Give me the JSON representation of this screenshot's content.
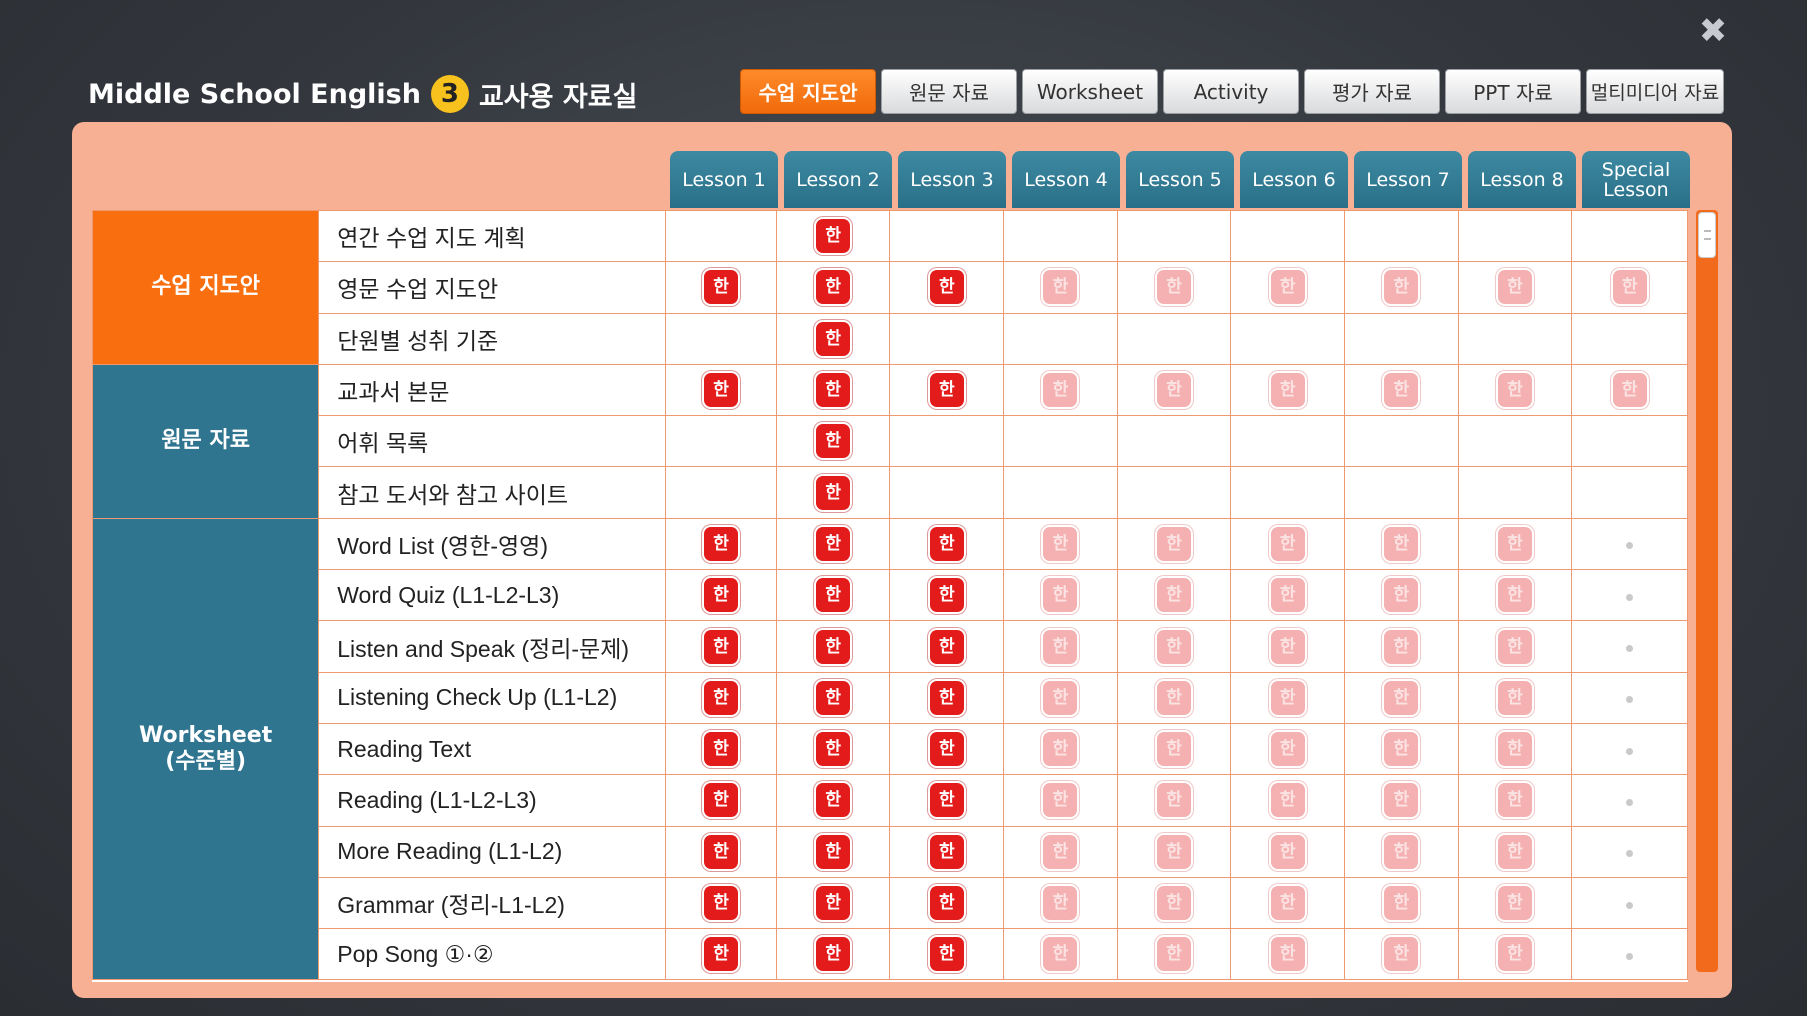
{
  "header": {
    "title": "Middle School English",
    "badge": "3",
    "subtitle": "교사용 자료실",
    "close_symbol": "✖"
  },
  "top_tabs": [
    {
      "label": "수업 지도안",
      "active": true
    },
    {
      "label": "원문 자료",
      "active": false
    },
    {
      "label": "Worksheet",
      "active": false
    },
    {
      "label": "Activity",
      "active": false
    },
    {
      "label": "평가 자료",
      "active": false
    },
    {
      "label": "PPT 자료",
      "active": false
    },
    {
      "label": "멀티미디어 자료",
      "active": false
    }
  ],
  "lesson_tabs": [
    "Lesson 1",
    "Lesson 2",
    "Lesson 3",
    "Lesson 4",
    "Lesson 5",
    "Lesson 6",
    "Lesson 7",
    "Lesson 8",
    "Special\nLesson"
  ],
  "icon_glyph": "한",
  "categories": [
    {
      "label": "수업 지도안",
      "color": "#f96f0f",
      "rows": 3
    },
    {
      "label": "원문 자료",
      "color": "#2f7590",
      "rows": 3
    },
    {
      "label": "Worksheet\n(수준별)",
      "color": "#2f7590",
      "rows": 9
    }
  ],
  "rows": [
    {
      "label": "연간 수업 지도 계획",
      "cells": [
        "none",
        "active",
        "none",
        "none",
        "none",
        "none",
        "none",
        "none",
        "none"
      ]
    },
    {
      "label": "영문 수업 지도안",
      "cells": [
        "active",
        "active",
        "active",
        "faded",
        "faded",
        "faded",
        "faded",
        "faded",
        "faded"
      ]
    },
    {
      "label": "단원별 성취 기준",
      "cells": [
        "none",
        "active",
        "none",
        "none",
        "none",
        "none",
        "none",
        "none",
        "none"
      ]
    },
    {
      "label": "교과서 본문",
      "cells": [
        "active",
        "active",
        "active",
        "faded",
        "faded",
        "faded",
        "faded",
        "faded",
        "faded"
      ]
    },
    {
      "label": "어휘 목록",
      "cells": [
        "none",
        "active",
        "none",
        "none",
        "none",
        "none",
        "none",
        "none",
        "none"
      ]
    },
    {
      "label": "참고 도서와 참고 사이트",
      "cells": [
        "none",
        "active",
        "none",
        "none",
        "none",
        "none",
        "none",
        "none",
        "none"
      ]
    },
    {
      "label": "Word List (영한-영영)",
      "cells": [
        "active",
        "active",
        "active",
        "faded",
        "faded",
        "faded",
        "faded",
        "faded",
        "dot"
      ]
    },
    {
      "label": "Word Quiz (L1-L2-L3)",
      "cells": [
        "active",
        "active",
        "active",
        "faded",
        "faded",
        "faded",
        "faded",
        "faded",
        "dot"
      ]
    },
    {
      "label": "Listen and Speak (정리-문제)",
      "cells": [
        "active",
        "active",
        "active",
        "faded",
        "faded",
        "faded",
        "faded",
        "faded",
        "dot"
      ]
    },
    {
      "label": "Listening Check Up (L1-L2)",
      "cells": [
        "active",
        "active",
        "active",
        "faded",
        "faded",
        "faded",
        "faded",
        "faded",
        "dot"
      ]
    },
    {
      "label": "Reading Text",
      "cells": [
        "active",
        "active",
        "active",
        "faded",
        "faded",
        "faded",
        "faded",
        "faded",
        "dot"
      ]
    },
    {
      "label": "Reading (L1-L2-L3)",
      "cells": [
        "active",
        "active",
        "active",
        "faded",
        "faded",
        "faded",
        "faded",
        "faded",
        "dot"
      ]
    },
    {
      "label": "More Reading (L1-L2)",
      "cells": [
        "active",
        "active",
        "active",
        "faded",
        "faded",
        "faded",
        "faded",
        "faded",
        "dot"
      ]
    },
    {
      "label": "Grammar (정리-L1-L2)",
      "cells": [
        "active",
        "active",
        "active",
        "faded",
        "faded",
        "faded",
        "faded",
        "faded",
        "dot"
      ]
    },
    {
      "label": "Pop Song ①·②",
      "cells": [
        "active",
        "active",
        "active",
        "faded",
        "faded",
        "faded",
        "faded",
        "faded",
        "dot"
      ]
    }
  ]
}
